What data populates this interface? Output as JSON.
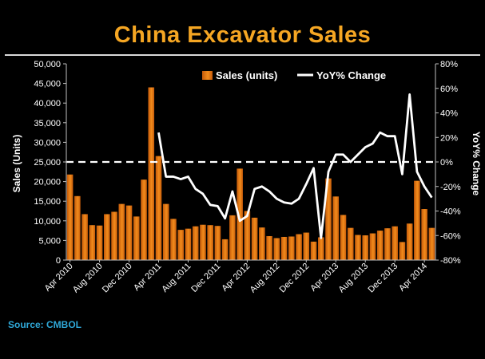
{
  "title": "China Excavator Sales",
  "source": "Source: CMBOL",
  "colors": {
    "bar": "#f28c1c",
    "bar_dark": "#c55a0a",
    "line": "#ffffff",
    "title": "#f5a623",
    "source": "#2fa8d8"
  },
  "chart_data": {
    "type": "bar",
    "title": "China Excavator Sales",
    "ylabel": "Sales (Units)",
    "y2label": "YoY% Change",
    "ylim": [
      0,
      50000
    ],
    "y2lim": [
      -80,
      80
    ],
    "yticks": [
      "0",
      "5,000",
      "10,000",
      "15,000",
      "20,000",
      "25,000",
      "30,000",
      "35,000",
      "40,000",
      "45,000",
      "50,000"
    ],
    "y2ticks": [
      "-80%",
      "-60%",
      "-40%",
      "-20%",
      "0%",
      "20%",
      "40%",
      "60%",
      "80%"
    ],
    "xticks": [
      {
        "label": "Apr 2010",
        "index": 0
      },
      {
        "label": "Aug 2010",
        "index": 4
      },
      {
        "label": "Dec 2010",
        "index": 8
      },
      {
        "label": "Apr 2011",
        "index": 12
      },
      {
        "label": "Aug 2011",
        "index": 16
      },
      {
        "label": "Dec 2011",
        "index": 20
      },
      {
        "label": "Apr 2012",
        "index": 24
      },
      {
        "label": "Aug 2012",
        "index": 28
      },
      {
        "label": "Dec 2012",
        "index": 32
      },
      {
        "label": "Apr 2013",
        "index": 36
      },
      {
        "label": "Aug 2013",
        "index": 40
      },
      {
        "label": "Dec 2013",
        "index": 44
      },
      {
        "label": "Apr 2014",
        "index": 48
      }
    ],
    "legend_placement": "top",
    "series": [
      {
        "name": "Sales (units)",
        "type": "bar",
        "axis": "left",
        "values": [
          21800,
          16300,
          11700,
          8900,
          8800,
          11700,
          12300,
          14300,
          13900,
          11100,
          20500,
          44000,
          26500,
          14300,
          10500,
          7700,
          8000,
          8600,
          9000,
          8900,
          8700,
          5300,
          11400,
          23300,
          12500,
          10800,
          8300,
          6100,
          5600,
          5900,
          6000,
          6600,
          7000,
          4700,
          5800,
          20800,
          16200,
          11500,
          8200,
          6400,
          6300,
          6800,
          7500,
          8100,
          8600,
          4600,
          9300,
          20200,
          13000,
          8200
        ]
      },
      {
        "name": "YoY% Change",
        "type": "line",
        "axis": "right",
        "x_start_index": 12,
        "values": [
          24,
          -12,
          -12,
          -14,
          -12,
          -22,
          -26,
          -35,
          -36,
          -46,
          -24,
          -48,
          -44,
          -22,
          -20,
          -24,
          -30,
          -33,
          -34,
          -30,
          -18,
          -5,
          -62,
          -8,
          6,
          6,
          0,
          6,
          12,
          15,
          24,
          21,
          21,
          -10,
          55,
          -8,
          -20,
          -29
        ]
      }
    ],
    "reference_line": {
      "axis": "right",
      "value": 0,
      "style": "dashed"
    }
  }
}
